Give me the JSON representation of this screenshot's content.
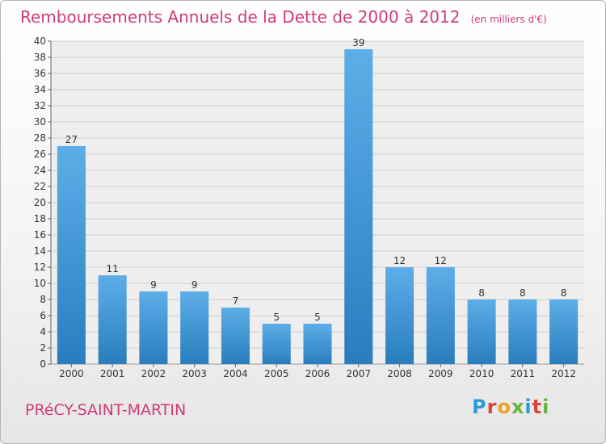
{
  "header": {
    "title": "Remboursements Annuels de la Dette de 2000 à 2012",
    "unit": "(en milliers d'€)"
  },
  "footer": {
    "commune": "PRéCY-SAINT-MARTIN",
    "logo": "Proxiti"
  },
  "colors": {
    "title": "#d03a78",
    "bar_top": "#5daee8",
    "bar_bottom": "#2a7dbd",
    "grid": "#cfcfcf"
  },
  "chart_data": {
    "type": "bar",
    "title": "Remboursements Annuels de la Dette de 2000 à 2012",
    "unit": "(en milliers d'€)",
    "categories": [
      "2000",
      "2001",
      "2002",
      "2003",
      "2004",
      "2005",
      "2006",
      "2007",
      "2008",
      "2009",
      "2010",
      "2011",
      "2012"
    ],
    "values": [
      27,
      11,
      9,
      9,
      7,
      5,
      5,
      39,
      12,
      12,
      8,
      8,
      8
    ],
    "ylim": [
      0,
      40
    ],
    "ytick_step": 2,
    "grid": true,
    "data_labels": true
  }
}
